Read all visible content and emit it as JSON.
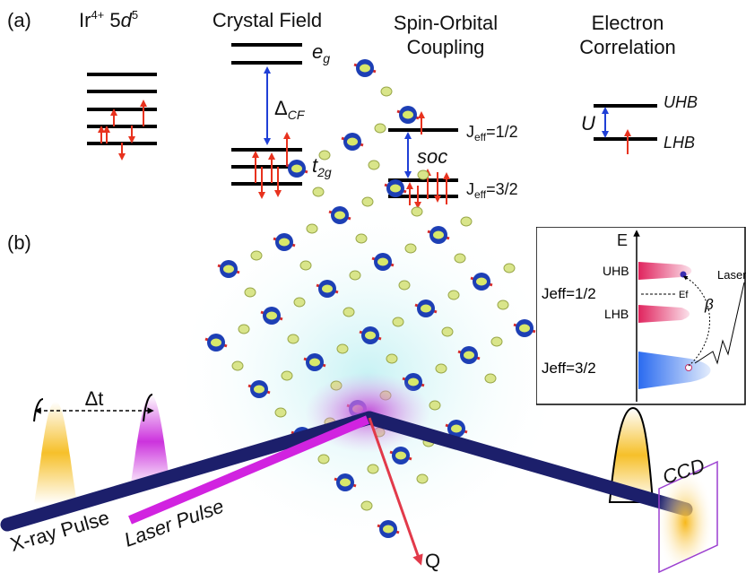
{
  "panel_a": {
    "label": "(a)",
    "ir": {
      "element": "Ir",
      "charge": "4+",
      "shell": " 5",
      "orbital": "d",
      "count": "5"
    },
    "crystal_field": {
      "title": "Crystal Field",
      "eg": {
        "main": "e",
        "sub": "g"
      },
      "delta": {
        "main": "Δ",
        "sub": "CF"
      },
      "t2g": {
        "main": "t",
        "sub": "2g"
      }
    },
    "soc": {
      "title_lines": [
        "Spin-Orbital",
        "Coupling"
      ],
      "label": "soc",
      "upper": {
        "main": "J",
        "sub": "eff",
        "rest": "=1/2"
      },
      "lower": {
        "main": "J",
        "sub": "eff",
        "rest": "=3/2"
      }
    },
    "correlation": {
      "title_lines": [
        "Electron",
        "Correlation"
      ],
      "u": "U",
      "upper": "UHB",
      "lower": "LHB"
    }
  },
  "panel_b": {
    "label": "(b)",
    "delay": "Δt",
    "xray": "X-ray Pulse",
    "laser": "Laser Pulse",
    "q": "Q",
    "ccd": "CCD",
    "inset": {
      "axis": "E",
      "uhb": "UHB",
      "lhb": "LHB",
      "jeff_half": "Jeff=1/2",
      "ef": "Ef",
      "beta": "β",
      "laser": "Laser",
      "jeff_three_half": "Jeff=3/2"
    }
  }
}
